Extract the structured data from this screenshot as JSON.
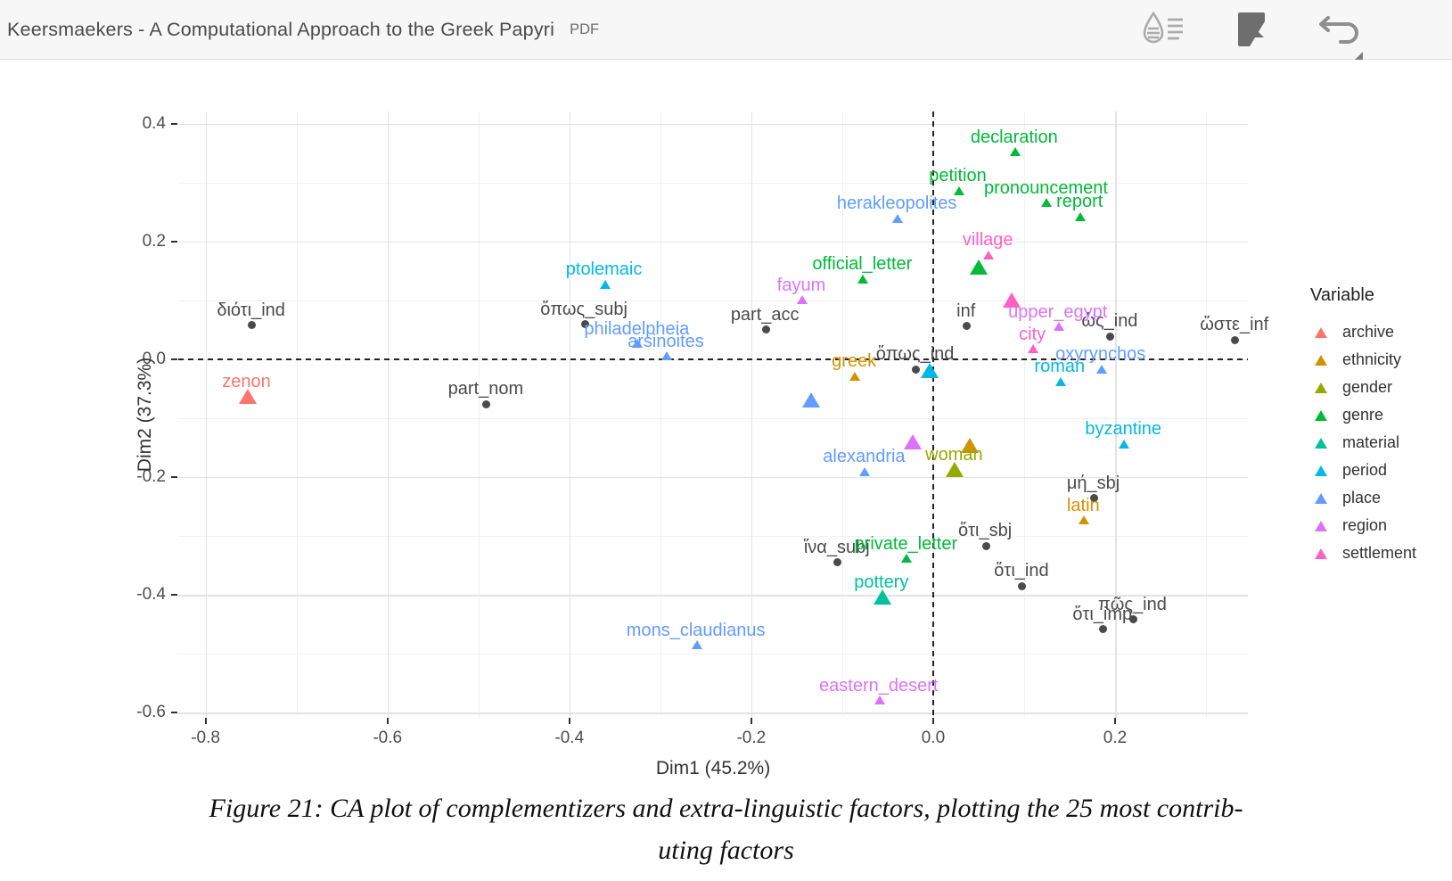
{
  "header": {
    "title": "Keersmaekers - A Computational Approach to the Greek Papyri",
    "badge": "PDF"
  },
  "caption": {
    "line1": "Figure 21: CA plot of complementizers and extra-linguistic factors, plotting the 25 most contrib-",
    "line2": "uting factors"
  },
  "chart_data": {
    "type": "scatter",
    "xlabel": "Dim1 (45.2%)",
    "ylabel": "Dim2 (37.3%)",
    "xlim": [
      -0.83,
      0.346
    ],
    "ylim": [
      -0.609,
      0.421
    ],
    "x_ticks": [
      -0.8,
      -0.6,
      -0.4,
      -0.2,
      0.0,
      0.2
    ],
    "y_ticks": [
      0.4,
      0.2,
      0.0,
      -0.2,
      -0.4,
      -0.6
    ],
    "x_minor_ticks": [
      -0.7,
      -0.5,
      -0.3,
      -0.1,
      0.1,
      0.3
    ],
    "y_minor_ticks": [
      0.3,
      0.1,
      -0.1,
      -0.3,
      -0.5
    ],
    "grid": "major+minor",
    "reference_lines": {
      "x": 0.0,
      "y": 0.0,
      "style": "dashed"
    },
    "legend_title": "Variable",
    "legend_position": "right",
    "categories": [
      {
        "name": "archive",
        "color": "#F8766D"
      },
      {
        "name": "ethnicity",
        "color": "#D39200"
      },
      {
        "name": "gender",
        "color": "#93AA00"
      },
      {
        "name": "genre",
        "color": "#00BA38"
      },
      {
        "name": "material",
        "color": "#00C19F"
      },
      {
        "name": "period",
        "color": "#00B9E3"
      },
      {
        "name": "place",
        "color": "#619CFF"
      },
      {
        "name": "region",
        "color": "#DB72FB"
      },
      {
        "name": "settlement",
        "color": "#FF61C3"
      }
    ],
    "complementizer_color": "#4a4a4a",
    "points": [
      {
        "label": "διότι_ind",
        "cat": "complementizer",
        "x": -0.749,
        "y": 0.058
      },
      {
        "label": "ὅπως_subj",
        "cat": "complementizer",
        "x": -0.383,
        "y": 0.059
      },
      {
        "label": "part_acc",
        "cat": "complementizer",
        "x": -0.184,
        "y": 0.05
      },
      {
        "label": "part_nom",
        "cat": "complementizer",
        "x": -0.491,
        "y": -0.076
      },
      {
        "label": "inf",
        "cat": "complementizer",
        "x": 0.037,
        "y": 0.056
      },
      {
        "label": "ὅπως_ind",
        "cat": "complementizer",
        "x": -0.019,
        "y": -0.017
      },
      {
        "label": "ὡς_ind",
        "cat": "complementizer",
        "x": 0.195,
        "y": 0.039
      },
      {
        "label": "ὥστε_inf",
        "cat": "complementizer",
        "x": 0.332,
        "y": 0.033
      },
      {
        "label": "μή_sbj",
        "cat": "complementizer",
        "x": 0.177,
        "y": -0.236
      },
      {
        "label": "ὅτι_sbj",
        "cat": "complementizer",
        "x": 0.058,
        "y": -0.317
      },
      {
        "label": "ἵνα_subj",
        "cat": "complementizer",
        "x": -0.105,
        "y": -0.345
      },
      {
        "label": "ὅτι_ind",
        "cat": "complementizer",
        "x": 0.098,
        "y": -0.385
      },
      {
        "label": "ὅτι_imp",
        "cat": "complementizer",
        "x": 0.187,
        "y": -0.459
      },
      {
        "label": "πῶς_ind",
        "cat": "complementizer",
        "x": 0.22,
        "y": -0.442
      },
      {
        "label": "zenon",
        "cat": "archive",
        "x": -0.754,
        "y": -0.064,
        "size": "l"
      },
      {
        "label": "greek",
        "cat": "ethnicity",
        "x": -0.086,
        "y": -0.029,
        "size": "s"
      },
      {
        "label": "latin",
        "cat": "ethnicity",
        "x": 0.166,
        "y": -0.274,
        "size": "s"
      },
      {
        "label": "",
        "cat": "ethnicity",
        "x": 0.04,
        "y": -0.148,
        "size": "l"
      },
      {
        "label": "woman",
        "cat": "gender",
        "x": 0.024,
        "y": -0.188,
        "size": "l"
      },
      {
        "label": "declaration",
        "cat": "genre",
        "x": 0.09,
        "y": 0.352,
        "size": "s"
      },
      {
        "label": "petition",
        "cat": "genre",
        "x": 0.028,
        "y": 0.286,
        "size": "s"
      },
      {
        "label": "pronouncement",
        "cat": "genre",
        "x": 0.125,
        "y": 0.265,
        "size": "s"
      },
      {
        "label": "report",
        "cat": "genre",
        "x": 0.162,
        "y": 0.242,
        "size": "s"
      },
      {
        "label": "official_letter",
        "cat": "genre",
        "x": -0.077,
        "y": 0.136,
        "size": "s"
      },
      {
        "label": "private_letter",
        "cat": "genre",
        "x": -0.029,
        "y": -0.339,
        "size": "s"
      },
      {
        "label": "",
        "cat": "genre",
        "x": 0.05,
        "y": 0.156,
        "size": "l"
      },
      {
        "label": "pottery",
        "cat": "material",
        "x": -0.056,
        "y": -0.405,
        "size": "l"
      },
      {
        "label": "ptolemaic",
        "cat": "period",
        "x": -0.361,
        "y": 0.127,
        "size": "s"
      },
      {
        "label": "roman",
        "cat": "period",
        "x": 0.14,
        "y": -0.038,
        "size": "s"
      },
      {
        "label": "byzantine",
        "cat": "period",
        "x": 0.21,
        "y": -0.144,
        "size": "s"
      },
      {
        "label": "",
        "cat": "period",
        "x": -0.004,
        "y": -0.021,
        "size": "l"
      },
      {
        "label": "herakleopolites",
        "cat": "place",
        "x": -0.039,
        "y": 0.239,
        "size": "s"
      },
      {
        "label": "philadelpheia",
        "cat": "place",
        "x": -0.325,
        "y": 0.026,
        "size": "s"
      },
      {
        "label": "arsinoites",
        "cat": "place",
        "x": -0.293,
        "y": 0.005,
        "size": "s"
      },
      {
        "label": "oxyrynchos",
        "cat": "place",
        "x": 0.185,
        "y": -0.017,
        "size": "s"
      },
      {
        "label": "alexandria",
        "cat": "place",
        "x": -0.075,
        "y": -0.191,
        "size": "s"
      },
      {
        "label": "mons_claudianus",
        "cat": "place",
        "x": -0.26,
        "y": -0.486,
        "size": "s"
      },
      {
        "label": "",
        "cat": "place",
        "x": -0.134,
        "y": -0.071,
        "size": "l"
      },
      {
        "label": "fayum",
        "cat": "region",
        "x": -0.144,
        "y": 0.1,
        "size": "s"
      },
      {
        "label": "upper_egypt",
        "cat": "region",
        "x": 0.138,
        "y": 0.055,
        "size": "s"
      },
      {
        "label": "eastern_desert",
        "cat": "region",
        "x": -0.059,
        "y": -0.58,
        "size": "s"
      },
      {
        "label": "",
        "cat": "region",
        "x": -0.022,
        "y": -0.141,
        "size": "l"
      },
      {
        "label": "village",
        "cat": "settlement",
        "x": 0.061,
        "y": 0.177,
        "size": "s"
      },
      {
        "label": "city",
        "cat": "settlement",
        "x": 0.11,
        "y": 0.017,
        "size": "s"
      },
      {
        "label": "",
        "cat": "settlement",
        "x": 0.086,
        "y": 0.1,
        "size": "l"
      }
    ]
  }
}
